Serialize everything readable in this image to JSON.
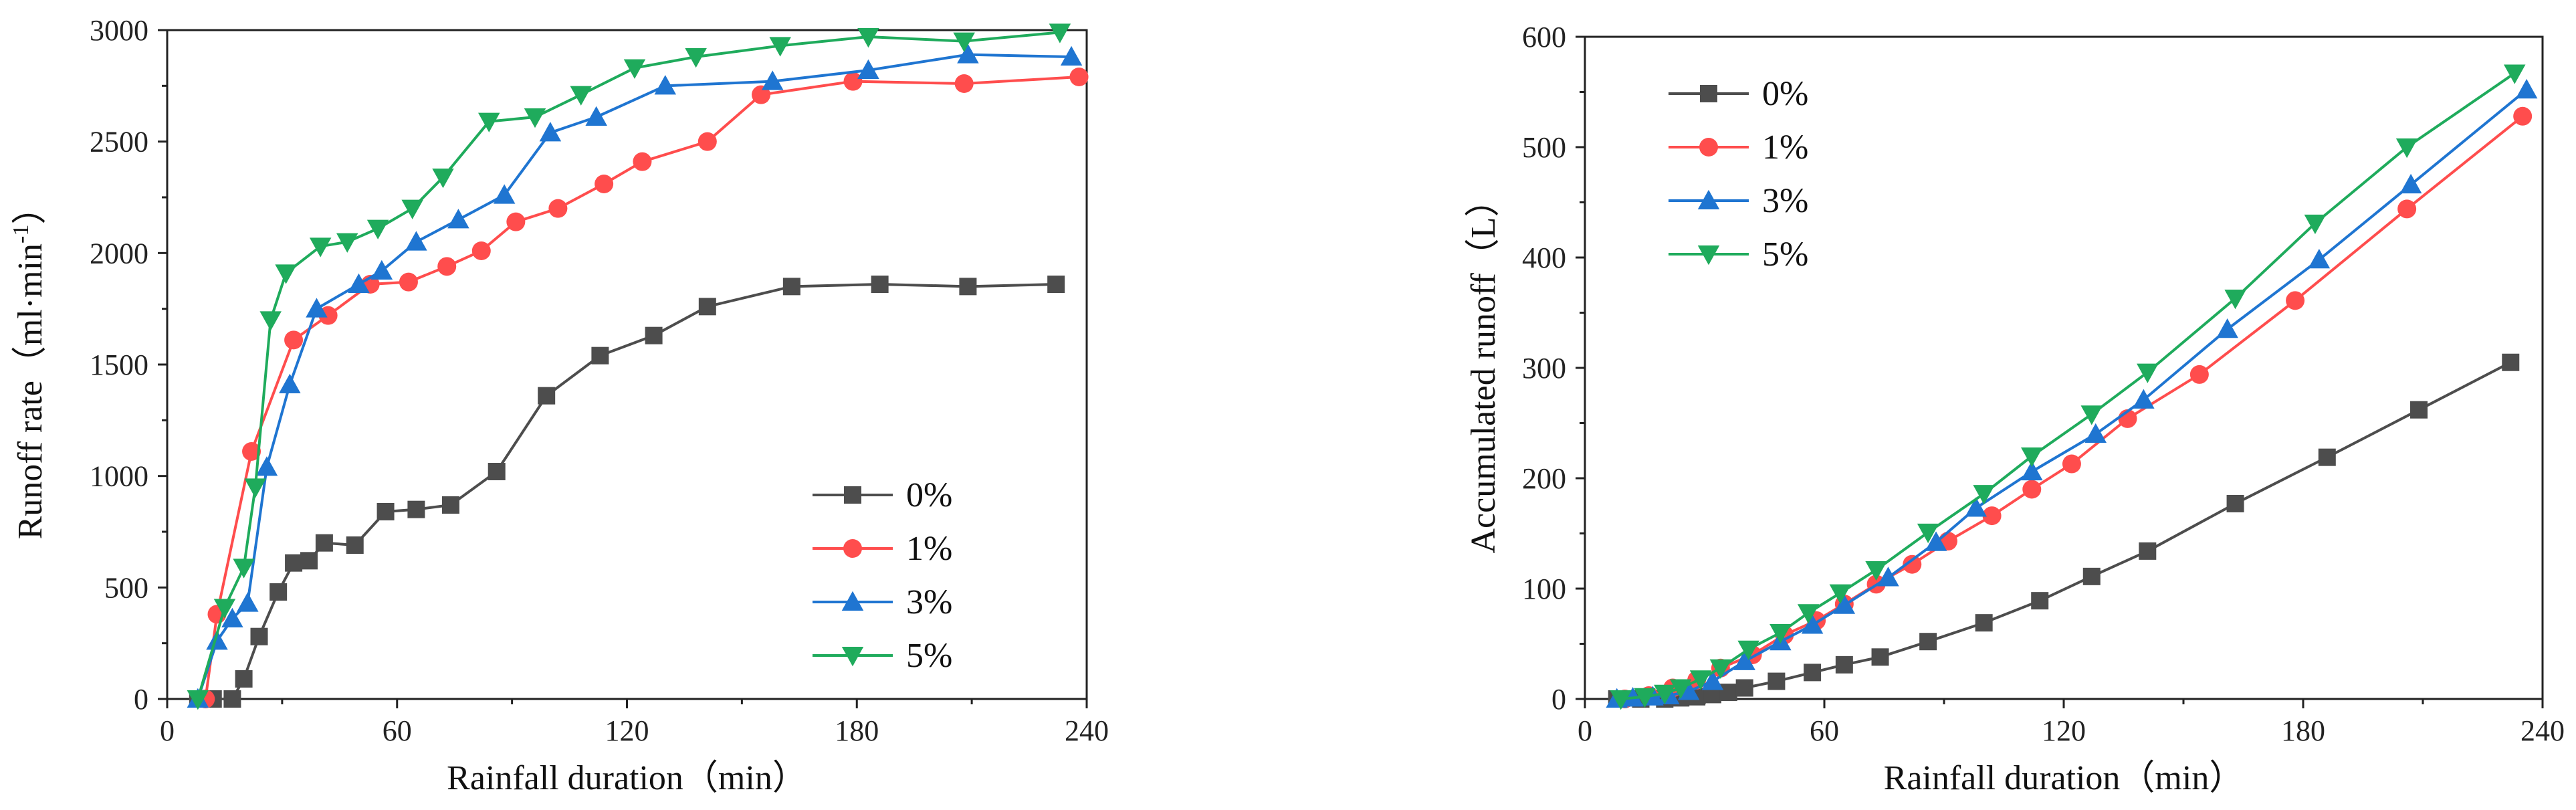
{
  "chart_data": [
    {
      "type": "line",
      "xlabel": "Rainfall duration（min）",
      "ylabel_main": "Runoff rate（ml·min",
      "ylabel_sup": "-1",
      "ylabel_close": "）",
      "xlim": [
        0,
        240
      ],
      "ylim": [
        0,
        3000
      ],
      "xticks": [
        "0",
        "60",
        "120",
        "180",
        "240"
      ],
      "yticks": [
        "0",
        "500",
        "1000",
        "1500",
        "2000",
        "2500",
        "3000"
      ],
      "legend_position": "lower-right",
      "series": [
        {
          "name": "0%",
          "color": "#4d4d4d",
          "marker": "square",
          "x": [
            8,
            12,
            17,
            20,
            24,
            29,
            33,
            37,
            41,
            49,
            57,
            65,
            74,
            86,
            99,
            113,
            127,
            141,
            163,
            186,
            209,
            232
          ],
          "y": [
            0,
            0,
            0,
            90,
            280,
            480,
            610,
            620,
            700,
            690,
            840,
            850,
            870,
            1020,
            1360,
            1540,
            1630,
            1760,
            1850,
            1860,
            1850,
            1860
          ]
        },
        {
          "name": "1%",
          "color": "#ff4d4d",
          "marker": "circle",
          "x": [
            10,
            13,
            22,
            33,
            42,
            53,
            63,
            73,
            82,
            91,
            102,
            114,
            124,
            141,
            155,
            179,
            208,
            238
          ],
          "y": [
            0,
            380,
            1110,
            1610,
            1720,
            1860,
            1870,
            1940,
            2010,
            2140,
            2200,
            2310,
            2410,
            2500,
            2710,
            2770,
            2760,
            2790
          ]
        },
        {
          "name": "3%",
          "color": "#1f75d1",
          "marker": "triangle-up",
          "x": [
            8,
            13,
            17,
            21,
            26,
            32,
            39,
            50,
            56,
            65,
            76,
            88,
            100,
            112,
            130,
            158,
            183,
            209,
            236
          ],
          "y": [
            0,
            260,
            360,
            430,
            1040,
            1410,
            1750,
            1860,
            1920,
            2050,
            2150,
            2260,
            2540,
            2610,
            2750,
            2770,
            2820,
            2890,
            2880
          ]
        },
        {
          "name": "5%",
          "color": "#1fab5c",
          "marker": "triangle-down",
          "x": [
            8,
            15,
            20,
            23,
            27,
            31,
            40,
            47,
            55,
            64,
            72,
            84,
            96,
            108,
            122,
            138,
            160,
            183,
            208,
            233
          ],
          "y": [
            0,
            410,
            590,
            950,
            1700,
            1910,
            2030,
            2050,
            2110,
            2200,
            2340,
            2590,
            2610,
            2710,
            2830,
            2880,
            2930,
            2970,
            2950,
            2990
          ]
        }
      ]
    },
    {
      "type": "line",
      "xlabel": "Rainfall duration（min）",
      "ylabel_main": "Accumulated runoff（L）",
      "xlim": [
        0,
        240
      ],
      "ylim": [
        0,
        600
      ],
      "xticks": [
        "0",
        "60",
        "120",
        "180",
        "240"
      ],
      "yticks": [
        "0",
        "100",
        "200",
        "300",
        "400",
        "500",
        "600"
      ],
      "legend_position": "top-left",
      "series": [
        {
          "name": "0%",
          "color": "#4d4d4d",
          "marker": "square",
          "x": [
            8,
            14,
            20,
            24,
            28,
            32,
            36,
            40,
            48,
            57,
            65,
            74,
            86,
            100,
            114,
            127,
            141,
            163,
            186,
            209,
            232
          ],
          "y": [
            0,
            0,
            0,
            1,
            2,
            4,
            6,
            10,
            16,
            24,
            31,
            38,
            52,
            69,
            89,
            111,
            134,
            177,
            219,
            262,
            305
          ]
        },
        {
          "name": "1%",
          "color": "#ff4d4d",
          "marker": "circle",
          "x": [
            10,
            16,
            22,
            28,
            34,
            42,
            50,
            58,
            65,
            73,
            82,
            91,
            102,
            112,
            122,
            136,
            154,
            178,
            206,
            235
          ],
          "y": [
            0,
            3,
            10,
            17,
            28,
            40,
            58,
            71,
            86,
            104,
            122,
            143,
            166,
            190,
            213,
            254,
            294,
            361,
            444,
            528
          ]
        },
        {
          "name": "3%",
          "color": "#1f75d1",
          "marker": "triangle-up",
          "x": [
            8,
            12,
            17,
            21,
            26,
            32,
            40,
            49,
            57,
            65,
            76,
            88,
            98,
            112,
            128,
            140,
            161,
            184,
            207,
            236
          ],
          "y": [
            0,
            1,
            2,
            3,
            7,
            16,
            34,
            52,
            67,
            85,
            110,
            142,
            173,
            206,
            240,
            271,
            335,
            398,
            466,
            552
          ]
        },
        {
          "name": "5%",
          "color": "#1fab5c",
          "marker": "triangle-down",
          "x": [
            9,
            15,
            20,
            24,
            29,
            34,
            41,
            49,
            56,
            64,
            73,
            86,
            100,
            112,
            127,
            141,
            163,
            183,
            206,
            233
          ],
          "y": [
            0,
            2,
            5,
            10,
            18,
            28,
            45,
            60,
            78,
            96,
            117,
            151,
            186,
            220,
            258,
            296,
            363,
            431,
            500,
            567
          ]
        }
      ]
    }
  ]
}
